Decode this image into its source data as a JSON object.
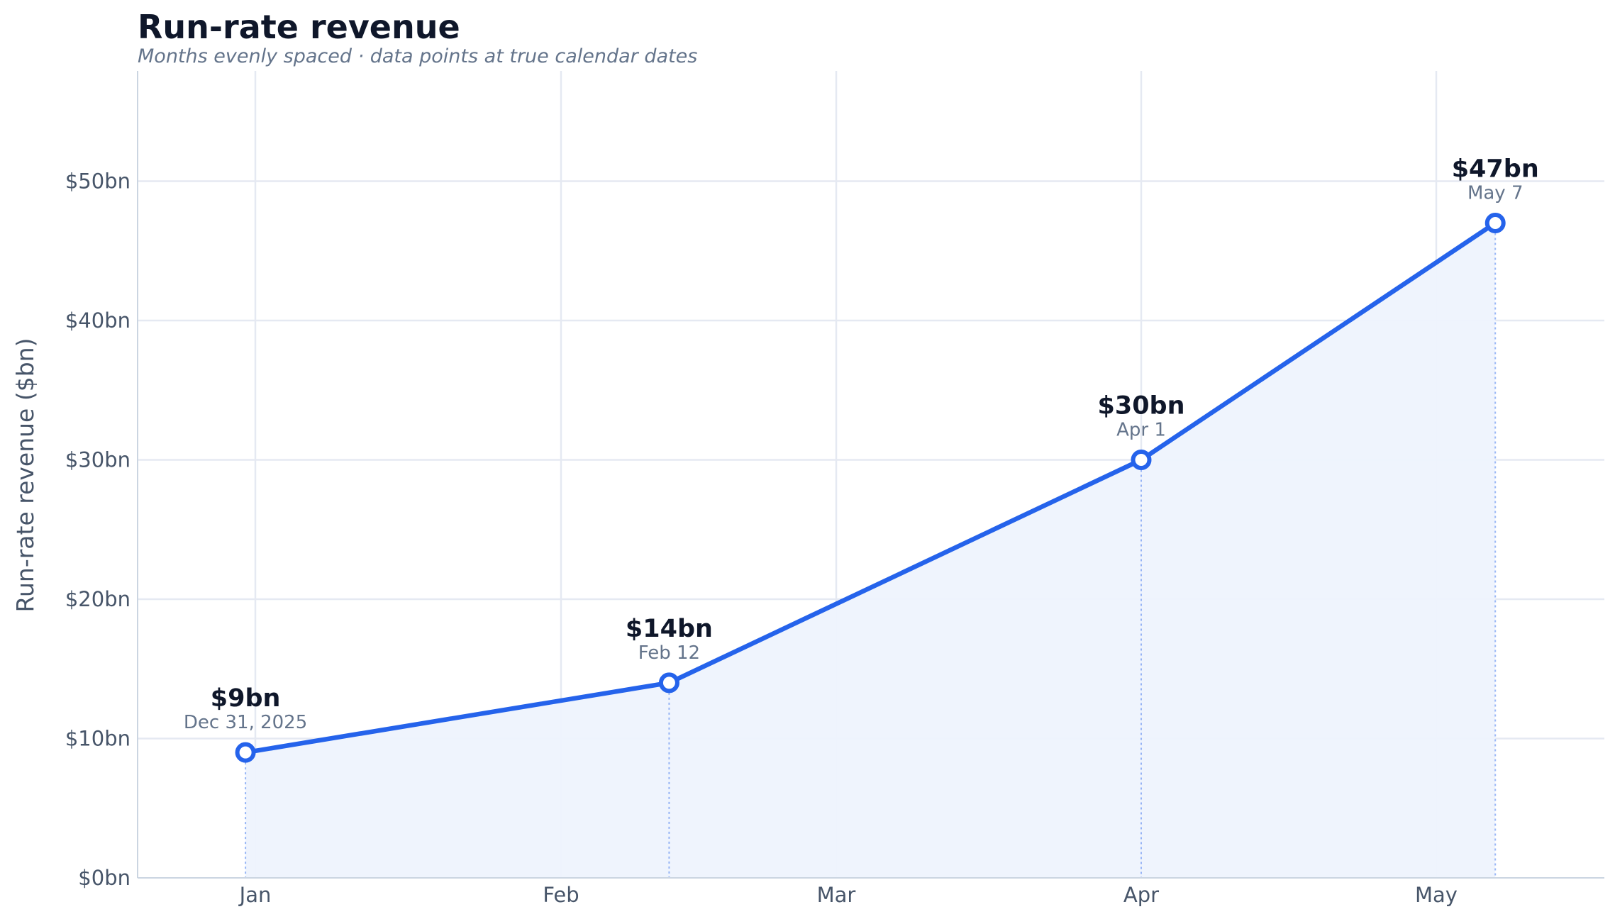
{
  "chart_data": {
    "type": "line",
    "title": "Run-rate revenue",
    "subtitle": "Months evenly spaced · data points at true calendar dates",
    "xlabel": "",
    "ylabel": "Run-rate revenue ($bn)",
    "x_ticks": [
      "Jan",
      "Feb",
      "Mar",
      "Apr",
      "May"
    ],
    "y_ticks": [
      "$0bn",
      "$10bn",
      "$20bn",
      "$30bn",
      "$40bn",
      "$50bn"
    ],
    "ylim": [
      0,
      58
    ],
    "grid": true,
    "series": [
      {
        "values": [
          9,
          14,
          30,
          47
        ],
        "points": [
          {
            "date": "2025-12-31",
            "date_label": "Dec 31, 2025",
            "value": 9,
            "value_label": "$9bn"
          },
          {
            "date": "2026-02-12",
            "date_label": "Feb 12",
            "value": 14,
            "value_label": "$14bn"
          },
          {
            "date": "2026-04-01",
            "date_label": "Apr 1",
            "value": 30,
            "value_label": "$30bn"
          },
          {
            "date": "2026-05-07",
            "date_label": "May 7",
            "value": 47,
            "value_label": "$47bn"
          }
        ]
      }
    ],
    "colors": {
      "line": "#2563eb",
      "area_fill": "#eef3fd",
      "grid": "#e5e9f2",
      "axis": "#cbd5e1",
      "title": "#0f172a",
      "subtitle": "#64748b",
      "tick": "#475569"
    }
  }
}
